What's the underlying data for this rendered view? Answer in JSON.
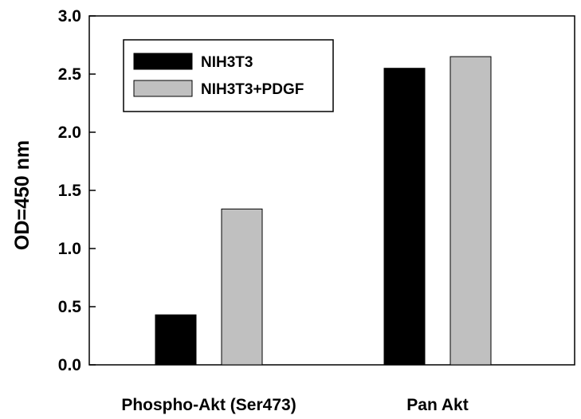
{
  "chart_data": {
    "type": "bar",
    "title": "",
    "xlabel": "",
    "ylabel": "OD=450 nm",
    "ylim": [
      0,
      3.0
    ],
    "yticks": [
      "0.0",
      "0.5",
      "1.0",
      "1.5",
      "2.0",
      "2.5",
      "3.0"
    ],
    "categories": [
      "Phospho-Akt (Ser473)",
      "Pan Akt"
    ],
    "series": [
      {
        "name": "NIH3T3",
        "values": [
          0.43,
          2.55
        ],
        "color": "#000000"
      },
      {
        "name": "NIH3T3+PDGF",
        "values": [
          1.34,
          2.65
        ],
        "color": "#c0c0c0"
      }
    ],
    "legend_position": "top-left",
    "grid": false
  }
}
